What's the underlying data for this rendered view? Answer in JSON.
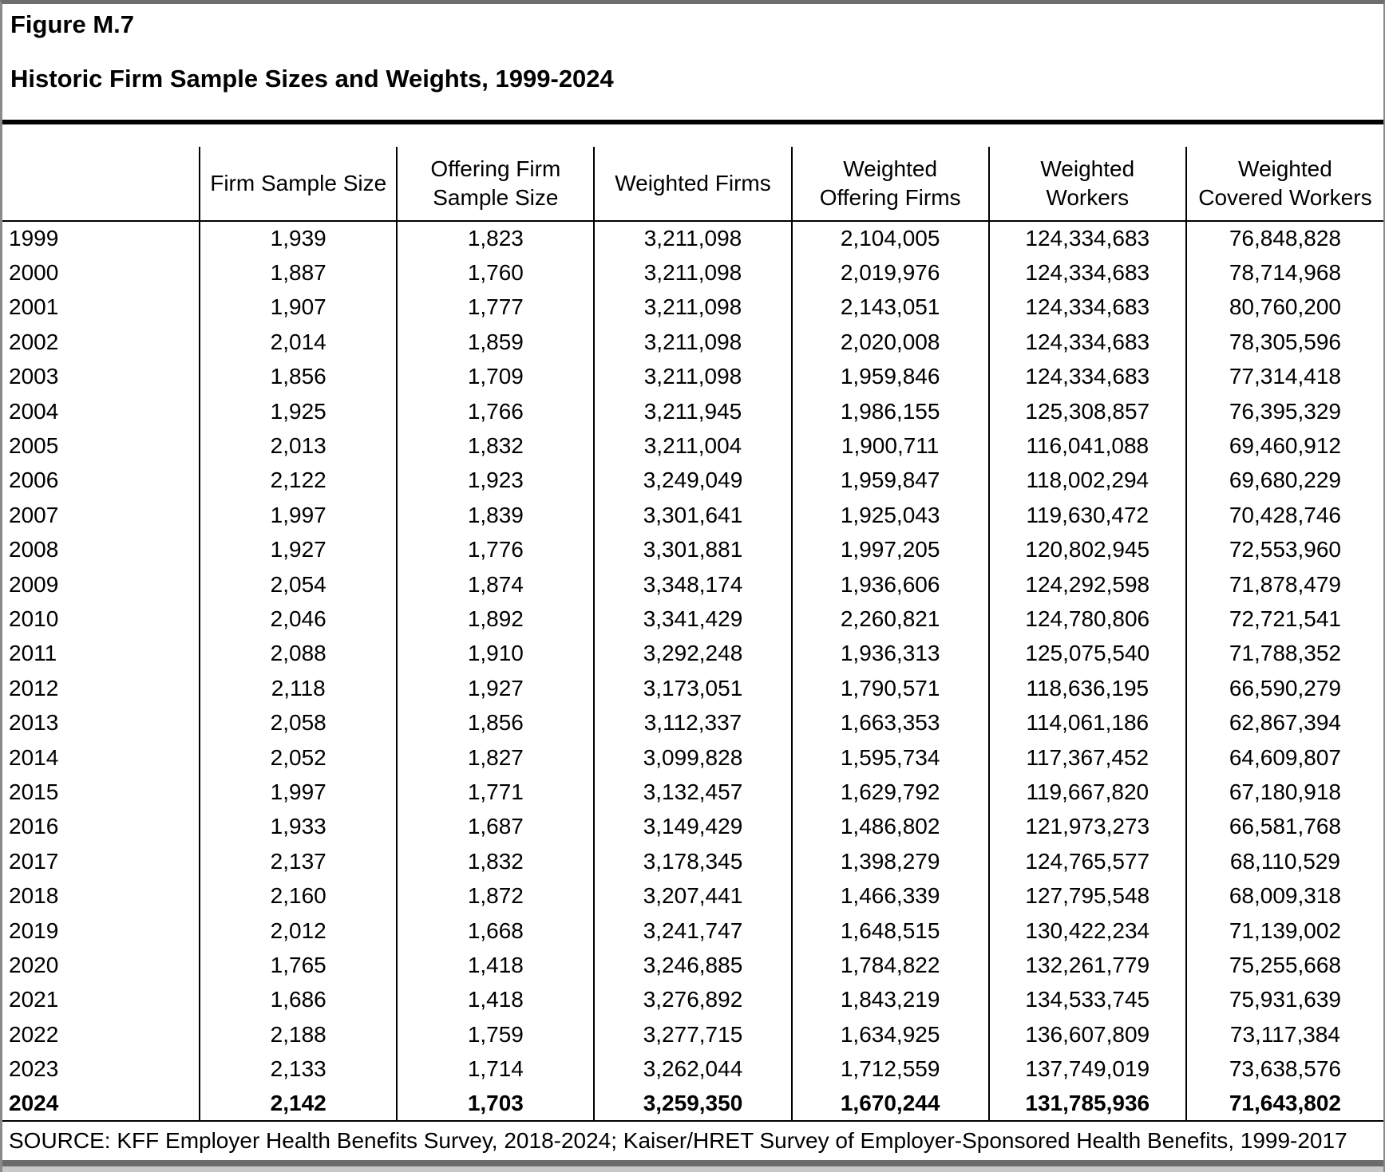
{
  "figure": {
    "label": "Figure M.7",
    "title": "Historic Firm Sample Sizes and Weights, 1999-2024"
  },
  "table": {
    "columns": [
      "",
      "Firm Sample Size",
      "Offering Firm\nSample Size",
      "Weighted Firms",
      "Weighted\nOffering Firms",
      "Weighted\nWorkers",
      "Weighted\nCovered Workers"
    ],
    "rows": [
      {
        "year": "1999",
        "values": [
          "1,939",
          "1,823",
          "3,211,098",
          "2,104,005",
          "124,334,683",
          "76,848,828"
        ],
        "bold": false
      },
      {
        "year": "2000",
        "values": [
          "1,887",
          "1,760",
          "3,211,098",
          "2,019,976",
          "124,334,683",
          "78,714,968"
        ],
        "bold": false
      },
      {
        "year": "2001",
        "values": [
          "1,907",
          "1,777",
          "3,211,098",
          "2,143,051",
          "124,334,683",
          "80,760,200"
        ],
        "bold": false
      },
      {
        "year": "2002",
        "values": [
          "2,014",
          "1,859",
          "3,211,098",
          "2,020,008",
          "124,334,683",
          "78,305,596"
        ],
        "bold": false
      },
      {
        "year": "2003",
        "values": [
          "1,856",
          "1,709",
          "3,211,098",
          "1,959,846",
          "124,334,683",
          "77,314,418"
        ],
        "bold": false
      },
      {
        "year": "2004",
        "values": [
          "1,925",
          "1,766",
          "3,211,945",
          "1,986,155",
          "125,308,857",
          "76,395,329"
        ],
        "bold": false
      },
      {
        "year": "2005",
        "values": [
          "2,013",
          "1,832",
          "3,211,004",
          "1,900,711",
          "116,041,088",
          "69,460,912"
        ],
        "bold": false
      },
      {
        "year": "2006",
        "values": [
          "2,122",
          "1,923",
          "3,249,049",
          "1,959,847",
          "118,002,294",
          "69,680,229"
        ],
        "bold": false
      },
      {
        "year": "2007",
        "values": [
          "1,997",
          "1,839",
          "3,301,641",
          "1,925,043",
          "119,630,472",
          "70,428,746"
        ],
        "bold": false
      },
      {
        "year": "2008",
        "values": [
          "1,927",
          "1,776",
          "3,301,881",
          "1,997,205",
          "120,802,945",
          "72,553,960"
        ],
        "bold": false
      },
      {
        "year": "2009",
        "values": [
          "2,054",
          "1,874",
          "3,348,174",
          "1,936,606",
          "124,292,598",
          "71,878,479"
        ],
        "bold": false
      },
      {
        "year": "2010",
        "values": [
          "2,046",
          "1,892",
          "3,341,429",
          "2,260,821",
          "124,780,806",
          "72,721,541"
        ],
        "bold": false
      },
      {
        "year": "2011",
        "values": [
          "2,088",
          "1,910",
          "3,292,248",
          "1,936,313",
          "125,075,540",
          "71,788,352"
        ],
        "bold": false
      },
      {
        "year": "2012",
        "values": [
          "2,118",
          "1,927",
          "3,173,051",
          "1,790,571",
          "118,636,195",
          "66,590,279"
        ],
        "bold": false
      },
      {
        "year": "2013",
        "values": [
          "2,058",
          "1,856",
          "3,112,337",
          "1,663,353",
          "114,061,186",
          "62,867,394"
        ],
        "bold": false
      },
      {
        "year": "2014",
        "values": [
          "2,052",
          "1,827",
          "3,099,828",
          "1,595,734",
          "117,367,452",
          "64,609,807"
        ],
        "bold": false
      },
      {
        "year": "2015",
        "values": [
          "1,997",
          "1,771",
          "3,132,457",
          "1,629,792",
          "119,667,820",
          "67,180,918"
        ],
        "bold": false
      },
      {
        "year": "2016",
        "values": [
          "1,933",
          "1,687",
          "3,149,429",
          "1,486,802",
          "121,973,273",
          "66,581,768"
        ],
        "bold": false
      },
      {
        "year": "2017",
        "values": [
          "2,137",
          "1,832",
          "3,178,345",
          "1,398,279",
          "124,765,577",
          "68,110,529"
        ],
        "bold": false
      },
      {
        "year": "2018",
        "values": [
          "2,160",
          "1,872",
          "3,207,441",
          "1,466,339",
          "127,795,548",
          "68,009,318"
        ],
        "bold": false
      },
      {
        "year": "2019",
        "values": [
          "2,012",
          "1,668",
          "3,241,747",
          "1,648,515",
          "130,422,234",
          "71,139,002"
        ],
        "bold": false
      },
      {
        "year": "2020",
        "values": [
          "1,765",
          "1,418",
          "3,246,885",
          "1,784,822",
          "132,261,779",
          "75,255,668"
        ],
        "bold": false
      },
      {
        "year": "2021",
        "values": [
          "1,686",
          "1,418",
          "3,276,892",
          "1,843,219",
          "134,533,745",
          "75,931,639"
        ],
        "bold": false
      },
      {
        "year": "2022",
        "values": [
          "2,188",
          "1,759",
          "3,277,715",
          "1,634,925",
          "136,607,809",
          "73,117,384"
        ],
        "bold": false
      },
      {
        "year": "2023",
        "values": [
          "2,133",
          "1,714",
          "3,262,044",
          "1,712,559",
          "137,749,019",
          "73,638,576"
        ],
        "bold": false
      },
      {
        "year": "2024",
        "values": [
          "2,142",
          "1,703",
          "3,259,350",
          "1,670,244",
          "131,785,936",
          "71,643,802"
        ],
        "bold": true
      }
    ]
  },
  "source": "SOURCE: KFF Employer Health Benefits Survey, 2018-2024; Kaiser/HRET Survey of Employer-Sponsored Health Benefits, 1999-2017",
  "colors": {
    "text": "#000000",
    "rule": "#000000",
    "frame": "#8a8a8a",
    "footer_bar_dark": "#6b6b6b",
    "footer_bar_light": "#c8c8c8"
  }
}
